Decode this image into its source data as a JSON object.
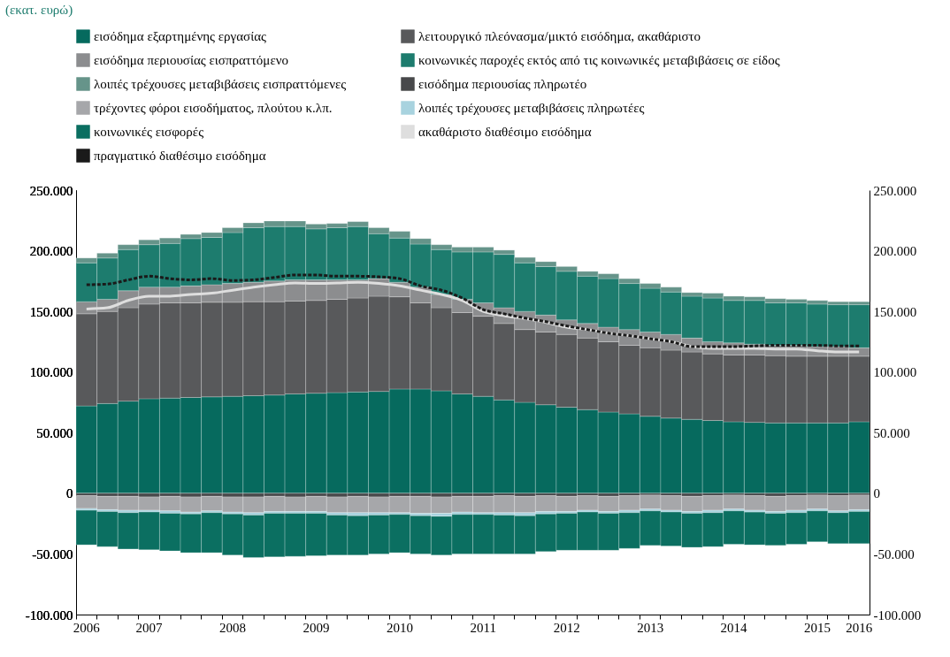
{
  "chart_data": {
    "type": "bar",
    "stacked": true,
    "title": "(εκατ. ευρώ)",
    "legend": "top",
    "categories": [
      "2006",
      null,
      null,
      "2007",
      null,
      null,
      null,
      "2008",
      null,
      null,
      null,
      "2009",
      null,
      null,
      null,
      "2010",
      null,
      null,
      null,
      "2011",
      null,
      null,
      null,
      "2012",
      null,
      null,
      null,
      "2013",
      null,
      null,
      null,
      "2014",
      null,
      null,
      null,
      "2015",
      null,
      "2016"
    ],
    "ylim": [
      -100000,
      250000
    ],
    "yticks": [
      {
        "value": 250000,
        "label": "250.000"
      },
      {
        "value": 200000,
        "label": "200.000"
      },
      {
        "value": 150000,
        "label": "150.000"
      },
      {
        "value": 100000,
        "label": "100.000"
      },
      {
        "value": 50000,
        "label": "50.000"
      },
      0,
      {
        "value": -50000,
        "label": "-50.000"
      },
      {
        "value": -100000,
        "label": "-100.000"
      }
    ],
    "y2lim": [
      -100000,
      250000
    ],
    "y2ticks": [
      {
        "value": 250000,
        "label": "250.000"
      },
      {
        "value": 200000,
        "label": "200.000"
      },
      {
        "value": 150000,
        "label": "150.000"
      },
      {
        "value": 100000,
        "label": "100.000"
      },
      {
        "value": 50000,
        "label": "50.000"
      },
      0,
      {
        "value": -50000,
        "label": "-50.000"
      },
      {
        "value": -100000,
        "label": "-100.000"
      }
    ],
    "series": [
      {
        "name": "εισόδημα εξαρτημένης εργασίας",
        "color": "#066a5e",
        "values": [
          72000,
          74000,
          76000,
          78000,
          78500,
          79000,
          79500,
          80000,
          80500,
          81000,
          82000,
          82500,
          83000,
          83500,
          84000,
          86000,
          86000,
          84500,
          82000,
          80000,
          77000,
          75000,
          73000,
          71000,
          69000,
          67000,
          65500,
          63500,
          62000,
          61000,
          60000,
          59000,
          58500,
          58000,
          58000,
          58000,
          58000,
          59000
        ]
      },
      {
        "name": "λειτουργικό πλεόνασμα/μικτό εισόδημα, ακαθάριστο",
        "color": "#58595b",
        "values": [
          76000,
          76000,
          77000,
          78000,
          78500,
          78000,
          78000,
          77500,
          77500,
          77000,
          76500,
          76500,
          77000,
          77500,
          78500,
          76000,
          71000,
          68500,
          67000,
          66000,
          63000,
          60000,
          60000,
          60000,
          59000,
          58000,
          56500,
          56500,
          56000,
          55500,
          55000,
          55000,
          55500,
          55500,
          55000,
          55000,
          55000,
          54000
        ]
      },
      {
        "name": "εισόδημα περιουσίας εισπραττόμενο",
        "color": "#8c8d8f",
        "values": [
          10000,
          10000,
          14000,
          14000,
          13000,
          14000,
          14500,
          15500,
          16000,
          17000,
          17500,
          17000,
          16000,
          15000,
          14500,
          12000,
          13000,
          11000,
          11000,
          11000,
          13000,
          15000,
          14000,
          12000,
          12000,
          12000,
          13000,
          13000,
          13000,
          11500,
          10000,
          10000,
          9000,
          8500,
          9000,
          8000,
          8000,
          7000
        ]
      },
      {
        "name": "κοινωνικές παροχές εκτός από τις κοινωνικές μεταβιβάσεις σε είδος",
        "color": "#1d7c6e",
        "values": [
          32000,
          34000,
          34000,
          35000,
          36000,
          39000,
          39000,
          42000,
          45000,
          45000,
          44000,
          42000,
          43000,
          44000,
          37000,
          36500,
          35500,
          37000,
          39000,
          42000,
          44000,
          40000,
          40000,
          40000,
          39000,
          40000,
          38000,
          36000,
          35000,
          34500,
          36000,
          35000,
          36000,
          35000,
          35000,
          35000,
          34500,
          35500
        ]
      },
      {
        "name": "λοιπές τρέχουσες μεταβιβάσεις εισπραττόμενες",
        "color": "#66948a",
        "values": [
          4000,
          4000,
          4000,
          4000,
          4500,
          3500,
          4000,
          4000,
          4000,
          4500,
          4500,
          4000,
          3500,
          4000,
          5000,
          5500,
          4500,
          4000,
          4000,
          4000,
          3500,
          4500,
          4000,
          4000,
          4000,
          4000,
          4000,
          4000,
          4000,
          3000,
          4000,
          3500,
          3000,
          3500,
          3000,
          3000,
          2500,
          2500
        ]
      },
      {
        "name": "εισόδημα περιουσίας πληρωτέο",
        "color": "#48494b",
        "values": [
          -2000,
          -2500,
          -2500,
          -3000,
          -2500,
          -3000,
          -2500,
          -3000,
          -3000,
          -2500,
          -3000,
          -2500,
          -3000,
          -2500,
          -3000,
          -2500,
          -2500,
          -3000,
          -2500,
          -2500,
          -2000,
          -2500,
          -2000,
          -2500,
          -2000,
          -2500,
          -2000,
          -1500,
          -2000,
          -2500,
          -2000,
          -1500,
          -2000,
          -2500,
          -2000,
          -1500,
          -2000,
          -1500
        ]
      },
      {
        "name": "τρέχοντες φόροι εισοδήματος, πλούτου κ.λπ.",
        "color": "#a6a7aa",
        "values": [
          -10500,
          -11000,
          -11500,
          -11000,
          -12000,
          -12500,
          -12000,
          -12500,
          -13000,
          -12500,
          -12000,
          -12500,
          -13000,
          -13500,
          -13000,
          -13500,
          -14000,
          -13500,
          -13000,
          -13500,
          -14000,
          -13500,
          -13000,
          -12500,
          -12000,
          -12500,
          -12000,
          -11500,
          -12000,
          -12500,
          -12000,
          -11500,
          -12000,
          -12500,
          -12000,
          -11500,
          -12500,
          -12000
        ]
      },
      {
        "name": "λοιπές τρέχουσες μεταβιβάσεις πληρωτέες",
        "color": "#a8d3df",
        "values": [
          -1500,
          -1500,
          -2000,
          -1500,
          -2000,
          -1500,
          -1500,
          -1500,
          -2000,
          -1500,
          -1500,
          -1500,
          -2000,
          -2500,
          -2000,
          -1500,
          -2000,
          -2500,
          -2000,
          -1500,
          -2000,
          -2500,
          -2000,
          -1500,
          -1500,
          -1500,
          -2000,
          -1500,
          -1500,
          -1500,
          -2000,
          -1500,
          -1500,
          -1500,
          -2000,
          -1500,
          -1500,
          -1500
        ]
      },
      {
        "name": "κοινωνικές εισφορές",
        "color": "#0b6f61",
        "values": [
          -28500,
          -29000,
          -30000,
          -31000,
          -31000,
          -32000,
          -33000,
          -34000,
          -35000,
          -36000,
          -35500,
          -35000,
          -33000,
          -32500,
          -32000,
          -31500,
          -31500,
          -32000,
          -32500,
          -32500,
          -32000,
          -31500,
          -31000,
          -30500,
          -31500,
          -30500,
          -29500,
          -28500,
          -28000,
          -28000,
          -28000,
          -27500,
          -27000,
          -26500,
          -26000,
          -25500,
          -25500,
          -26500
        ]
      },
      {
        "name": "ακαθάριστο διαθέσιμο εισόδημα",
        "color": "#dedede",
        "type": "line",
        "line_style": "solid",
        "values": [
          152000,
          153000,
          159000,
          162500,
          162500,
          164000,
          165000,
          167500,
          170000,
          172000,
          173500,
          173000,
          173500,
          174000,
          173000,
          171000,
          167500,
          164000,
          159000,
          150000,
          146500,
          144000,
          141000,
          137000,
          135000,
          132000,
          130000,
          127500,
          125000,
          121000,
          119500,
          119500,
          119500,
          119000,
          119000,
          117500,
          116500,
          116500
        ]
      },
      {
        "name": "πραγματικό διαθέσιμο εισόδημα",
        "color": "#1a1a1a",
        "type": "line",
        "line_style": "dashed",
        "values": [
          172000,
          172500,
          176000,
          179000,
          177000,
          176000,
          177000,
          175500,
          176000,
          178000,
          180000,
          180000,
          179000,
          179000,
          178500,
          177000,
          171000,
          167500,
          161000,
          151500,
          148000,
          144500,
          141500,
          138000,
          135000,
          132000,
          130000,
          127500,
          125000,
          121000,
          121000,
          121000,
          121500,
          122000,
          122000,
          122000,
          121500,
          121500
        ]
      }
    ]
  }
}
